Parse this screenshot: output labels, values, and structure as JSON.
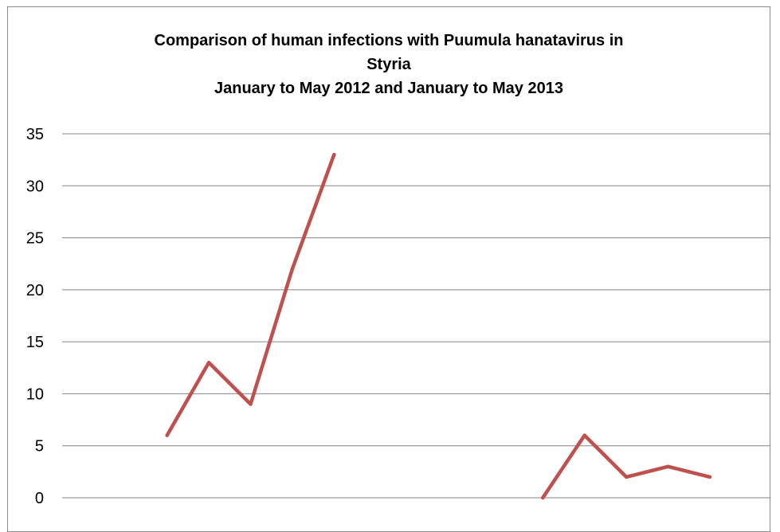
{
  "chart_data": {
    "type": "line",
    "title_lines": [
      "Comparison of human infections with Puumula hanatavirus in",
      "Styria",
      "January to May 2012 and January to May 2013"
    ],
    "xlabel": "",
    "ylabel": "",
    "ylim": [
      0,
      35
    ],
    "yticks": [
      0,
      5,
      10,
      15,
      20,
      25,
      30,
      35
    ],
    "grid": true,
    "legend": "none",
    "colors": {
      "line": "#c0504d",
      "grid": "#868686",
      "axis_text": "#000000"
    },
    "series": [
      {
        "x_index": [
          0,
          1,
          2,
          3,
          4,
          5,
          6,
          7,
          8,
          9,
          10,
          11,
          12,
          13,
          14,
          15
        ],
        "values": [
          null,
          null,
          null,
          6,
          13,
          9,
          22,
          33,
          null,
          null,
          null,
          null,
          0,
          6,
          2,
          3
        ]
      },
      {
        "x_index": [
          16
        ],
        "values": [
          2
        ]
      }
    ]
  }
}
